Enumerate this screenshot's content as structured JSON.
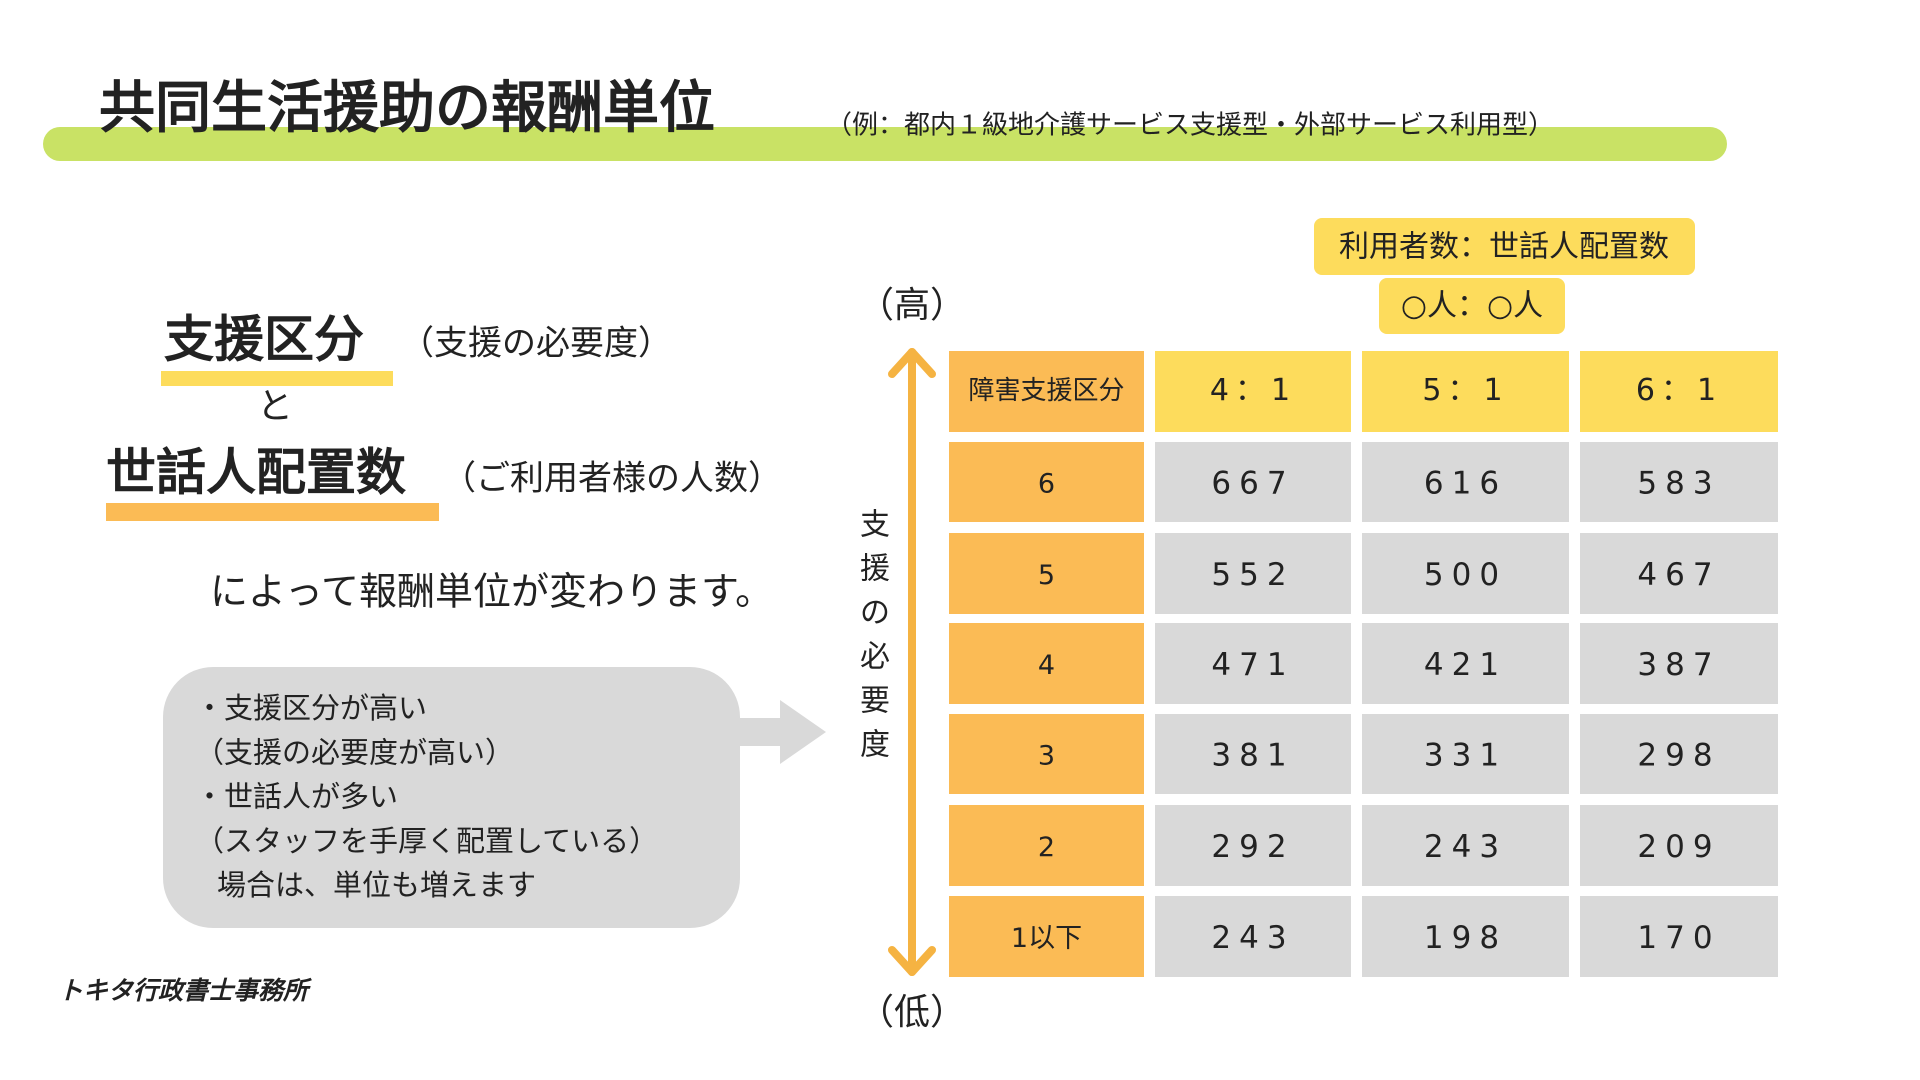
{
  "header": {
    "title": "共同生活援助の報酬単位",
    "subtitle": "（例：都内１級地介護サービス支援型・外部サービス利用型）"
  },
  "badge": {
    "line1": "利用者数：世話人配置数",
    "line2": "○人：○人"
  },
  "axis": {
    "high": "（高）",
    "low": "（低）",
    "label": [
      "支",
      "援",
      "の",
      "必",
      "要",
      "度"
    ]
  },
  "left": {
    "term1": "支援区分",
    "term1_note": "（支援の必要度）",
    "and": "と",
    "term2": "世話人配置数",
    "term2_note": "（ご利用者様の人数）",
    "conclusion": "によって報酬単位が変わります。"
  },
  "bubble": {
    "lines": [
      "・支援区分が高い",
      "（支援の必要度が高い）",
      "・世話人が多い",
      "（スタッフを手厚く配置している）",
      "場合は、単位も増えます"
    ]
  },
  "logo": "トキタ行政書士事務所",
  "table": {
    "header": [
      "障害支援区分",
      "4：1",
      "5：1",
      "6：1"
    ],
    "rows": [
      [
        "6",
        667,
        616,
        583
      ],
      [
        "5",
        552,
        500,
        467
      ],
      [
        "4",
        471,
        421,
        387
      ],
      [
        "3",
        381,
        331,
        298
      ],
      [
        "2",
        292,
        243,
        209
      ],
      [
        "1以下",
        243,
        198,
        170
      ]
    ]
  }
}
